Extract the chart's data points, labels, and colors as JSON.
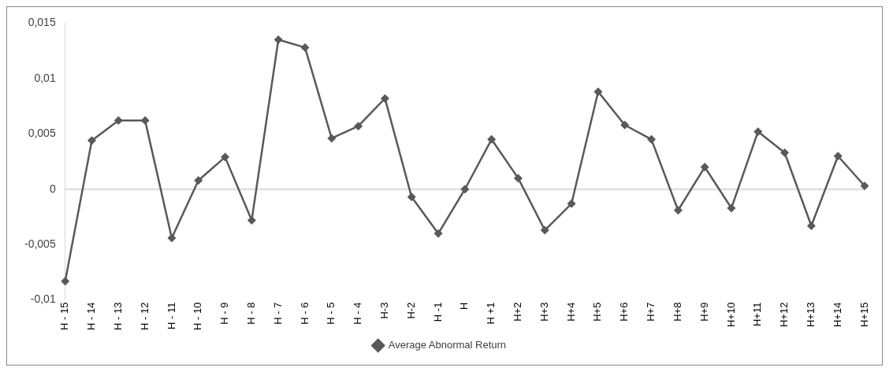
{
  "chart_data": {
    "type": "line",
    "categories": [
      "H - 15",
      "H - 14",
      "H - 13",
      "H - 12",
      "H - 11",
      "H - 10",
      "H - 9",
      "H - 8",
      "H - 7",
      "H - 6",
      "H - 5",
      "H - 4",
      "H-3",
      "H-2",
      "H -1",
      "H",
      "H +1",
      "H+2",
      "H+3",
      "H+4",
      "H+5",
      "H+6",
      "H+7",
      "H+8",
      "H+9",
      "H+10",
      "H+11",
      "H+12",
      "H+13",
      "H+14",
      "H+15"
    ],
    "series": [
      {
        "name": "Average Abnormal Return",
        "color": "#595959",
        "values": [
          -0.0083,
          0.0044,
          0.0062,
          0.0062,
          -0.0044,
          0.0008,
          0.0029,
          -0.0028,
          0.0135,
          0.0128,
          0.0046,
          0.0057,
          0.0082,
          -0.0007,
          -0.004,
          0,
          0.0045,
          0.001,
          -0.0037,
          -0.0013,
          0.0088,
          0.0058,
          0.0045,
          -0.0019,
          0.002,
          -0.0017,
          0.0052,
          0.0033,
          -0.0033,
          0.003,
          0.0003
        ]
      }
    ],
    "ylim": [
      -0.01,
      0.015
    ],
    "yticks": [
      {
        "value": -0.01,
        "label": "-0,01"
      },
      {
        "value": -0.005,
        "label": "-0,005"
      },
      {
        "value": 0,
        "label": "0"
      },
      {
        "value": 0.005,
        "label": "0,005"
      },
      {
        "value": 0.01,
        "label": "0,01"
      },
      {
        "value": 0.015,
        "label": "0,015"
      }
    ],
    "ref_lines": [
      {
        "axis": "y",
        "value": 0,
        "color": "#d9d9d9"
      }
    ],
    "legend": "bottom",
    "marker": "diamond",
    "line_style": "solid",
    "grid": false
  }
}
